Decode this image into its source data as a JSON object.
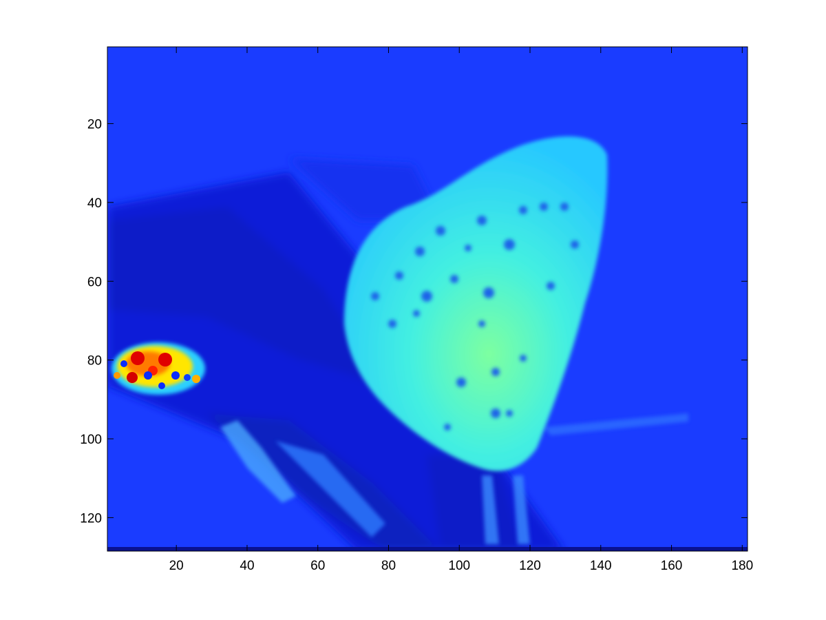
{
  "chart_data": {
    "type": "heatmap",
    "title": "",
    "xlabel": "",
    "ylabel": "",
    "xlim": [
      0.5,
      181.5
    ],
    "ylim": [
      0.5,
      128.5
    ],
    "y_reversed": true,
    "colormap": "jet",
    "grid": false,
    "legend": "none",
    "x_ticks": [
      20,
      40,
      60,
      80,
      100,
      120,
      140,
      160,
      180
    ],
    "y_ticks": [
      20,
      40,
      60,
      80,
      100,
      120
    ],
    "description_of_values": "image intensity, mostly low (blue); butterfly wings mid (cyan/green); bright spot patch near x 5-28, y 76-91 high (yellow/red)",
    "colors": {
      "background_low": "#1a3cff",
      "dark_region": "#0a18d8",
      "wing_cyan": "#33e8ff",
      "wing_green": "#6dffb0",
      "hot_yellow": "#ffe600",
      "hot_red": "#e00000",
      "bottom_band": "#0a1290"
    }
  }
}
